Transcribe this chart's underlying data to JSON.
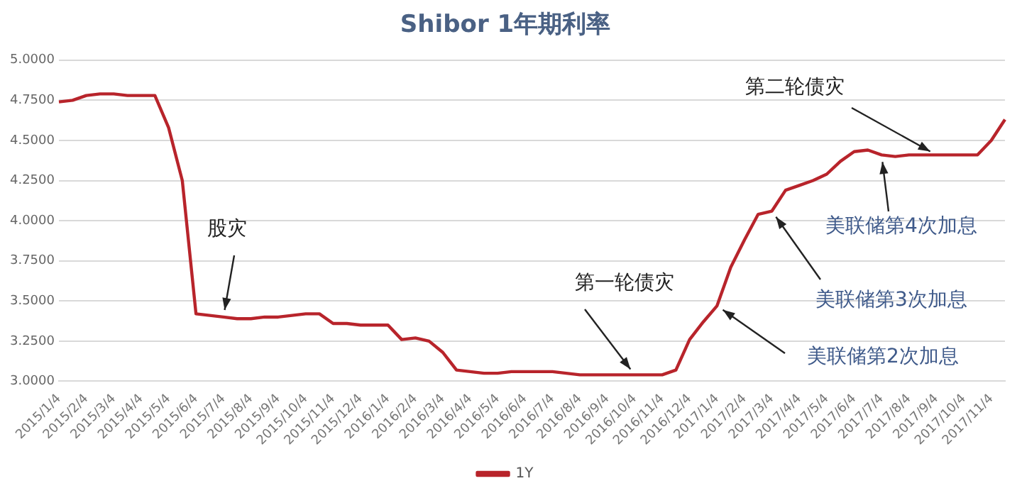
{
  "chart_data": {
    "type": "line",
    "title": "Shibor 1年期利率",
    "categories": [
      "2015/1/4",
      null,
      "2015/2/4",
      null,
      "2015/3/4",
      null,
      "2015/4/4",
      null,
      "2015/5/4",
      null,
      "2015/6/4",
      null,
      "2015/7/4",
      null,
      "2015/8/4",
      null,
      "2015/9/4",
      null,
      "2015/10/4",
      null,
      "2015/11/4",
      null,
      "2015/12/4",
      null,
      "2016/1/4",
      null,
      "2016/2/4",
      null,
      "2016/3/4",
      null,
      "2016/4/4",
      null,
      "2016/5/4",
      null,
      "2016/6/4",
      null,
      "2016/7/4",
      null,
      "2016/8/4",
      null,
      "2016/9/4",
      null,
      "2016/10/4",
      null,
      "2016/11/4",
      null,
      "2016/12/4",
      null,
      "2017/1/4",
      null,
      "2017/2/4",
      null,
      "2017/3/4",
      null,
      "2017/4/4",
      null,
      "2017/5/4",
      null,
      "2017/6/4",
      null,
      "2017/7/4",
      null,
      "2017/8/4",
      null,
      "2017/9/4",
      null,
      "2017/10/4",
      null,
      "2017/11/4",
      null
    ],
    "series": [
      {
        "name": "1Y",
        "color": "#b8242b",
        "values": [
          4.74,
          4.75,
          4.78,
          4.79,
          4.79,
          4.78,
          4.78,
          4.78,
          4.58,
          4.25,
          3.42,
          3.41,
          3.4,
          3.39,
          3.39,
          3.4,
          3.4,
          3.41,
          3.42,
          3.42,
          3.36,
          3.36,
          3.35,
          3.35,
          3.35,
          3.26,
          3.27,
          3.25,
          3.18,
          3.07,
          3.06,
          3.05,
          3.05,
          3.06,
          3.06,
          3.06,
          3.06,
          3.05,
          3.04,
          3.04,
          3.04,
          3.04,
          3.04,
          3.04,
          3.04,
          3.07,
          3.26,
          3.37,
          3.47,
          3.71,
          3.88,
          4.04,
          4.06,
          4.19,
          4.22,
          4.25,
          4.29,
          4.37,
          4.43,
          4.44,
          4.41,
          4.4,
          4.41,
          4.41,
          4.41,
          4.41,
          4.41,
          4.41,
          4.5,
          4.63
        ]
      }
    ],
    "ylim": [
      3,
      5
    ],
    "yticks": [
      {
        "value": 3,
        "label": "3.0000"
      },
      {
        "value": 3.25,
        "label": "3.2500"
      },
      {
        "value": 3.5,
        "label": "3.5000"
      },
      {
        "value": 3.75,
        "label": "3.7500"
      },
      {
        "value": 4,
        "label": "4.0000"
      },
      {
        "value": 4.25,
        "label": "4.2500"
      },
      {
        "value": 4.5,
        "label": "4.5000"
      },
      {
        "value": 4.75,
        "label": "4.7500"
      },
      {
        "value": 5,
        "label": "5.0000"
      }
    ],
    "grid": "y",
    "legend": "bottom",
    "marker": "none",
    "line_style": "solid",
    "annotations": [
      {
        "text": "股灾",
        "x": "2015/7/4",
        "y": 3.4
      },
      {
        "text": "第一轮债灾",
        "x": "2016/10/4",
        "y": 3.04
      },
      {
        "text": "第二轮债灾",
        "x": "2017/9/4",
        "y": 4.41
      },
      {
        "text": "美联储第4次加息",
        "x": "2017/7/4",
        "y": 4.41
      },
      {
        "text": "美联储第3次加息",
        "x": "2017/3/4",
        "y": 4.06
      },
      {
        "text": "美联储第2次加息",
        "x": "2017/1/4",
        "y": 3.47
      }
    ]
  }
}
